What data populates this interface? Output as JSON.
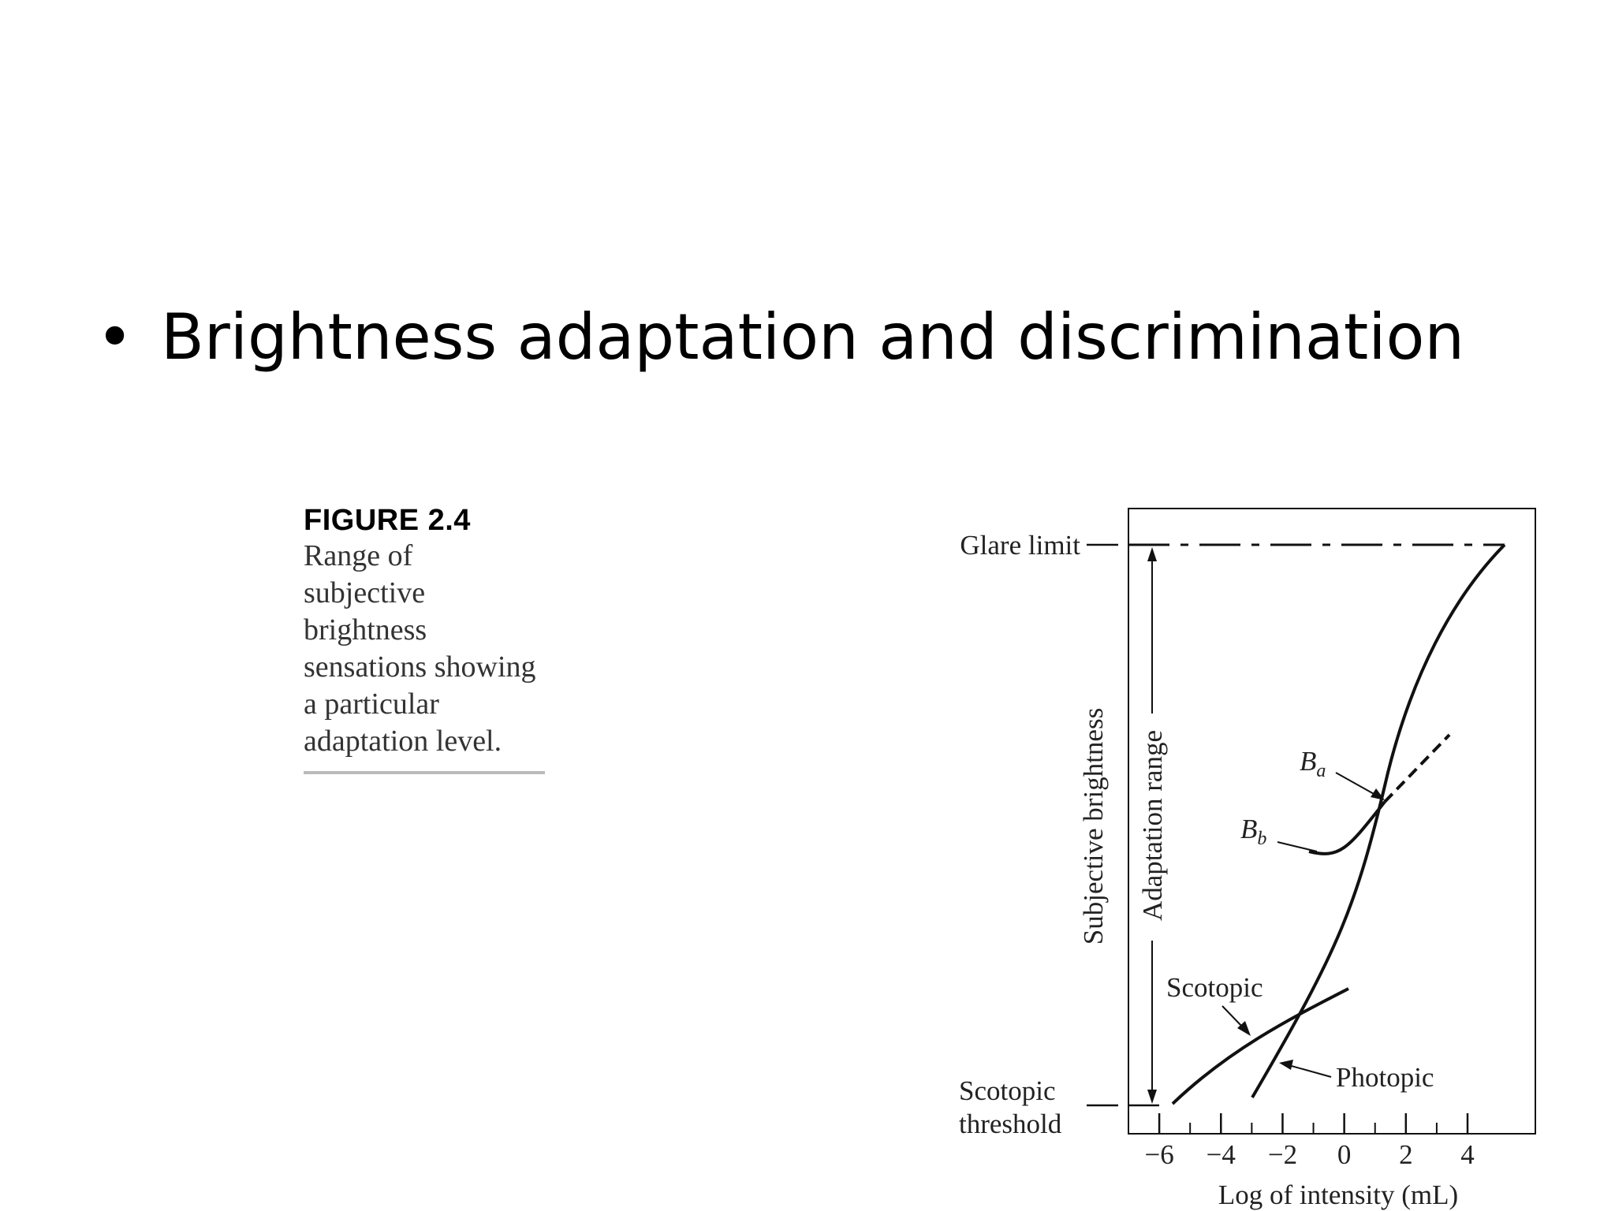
{
  "slide": {
    "bullet_glyph": "•",
    "bullet_text": "Brightness adaptation and discrimination"
  },
  "figure": {
    "label": "FIGURE 2.4",
    "caption": "Range of subjective brightness sensations showing a particular adaptation level."
  },
  "chart_data": {
    "type": "line",
    "xlabel": "Log of intensity (mL)",
    "ylabel": "Subjective brightness",
    "xlim": [
      -7,
      6.2
    ],
    "x_ticks": [
      -6,
      -4,
      -2,
      0,
      2,
      4
    ],
    "x_tick_labels": [
      "−6",
      "−4",
      "−2",
      "0",
      "2",
      "4"
    ],
    "x_minor_ticks": [
      -5,
      -3,
      -1,
      1,
      3
    ],
    "grid": false,
    "levels": {
      "glare_limit": "Glare limit",
      "scotopic_threshold_line1": "Scotopic",
      "scotopic_threshold_line2": "threshold"
    },
    "annotations": {
      "adaptation_range": "Adaptation range",
      "ba": "B",
      "ba_sub": "a",
      "bb": "B",
      "bb_sub": "b",
      "scotopic": "Scotopic",
      "photopic": "Photopic"
    }
  }
}
